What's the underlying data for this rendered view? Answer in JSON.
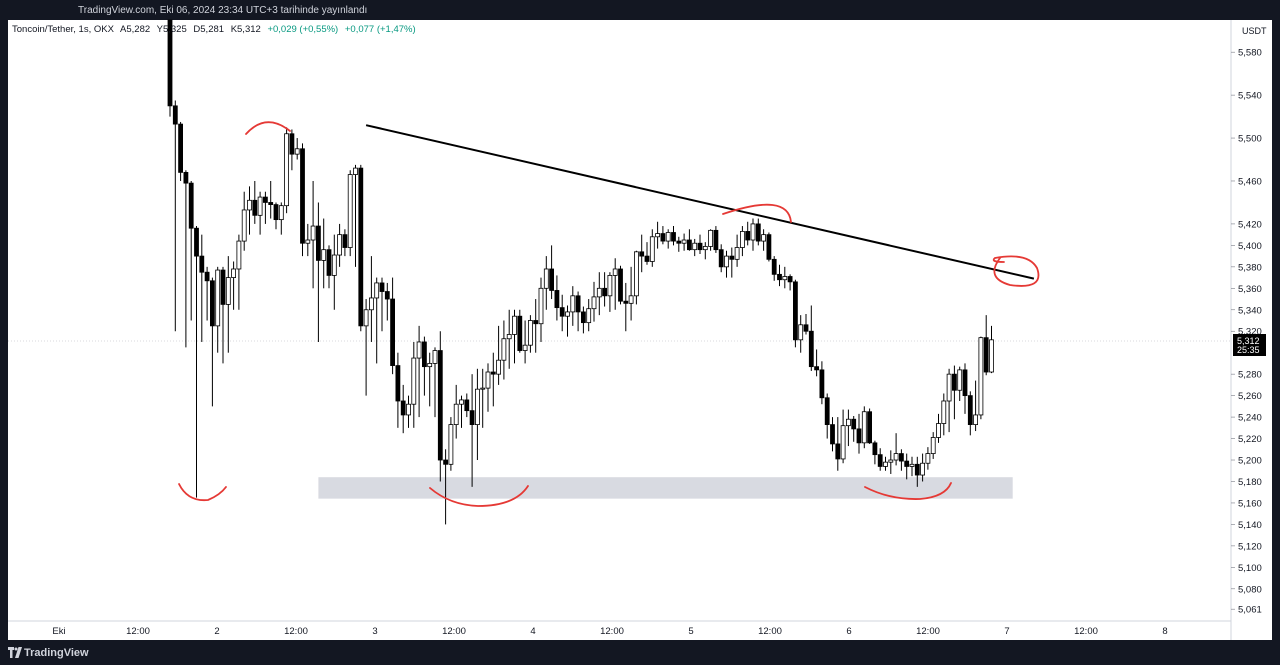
{
  "header": {
    "published": "TradingView.com, Eki 06, 2024 23:34 UTC+3 tarihinde yayınlandı"
  },
  "legend": {
    "symbol": "Toncoin/Tether, 1s, OKX",
    "open": "A5,282",
    "high": "Y5,325",
    "low": "D5,281",
    "close": "K5,312",
    "change": "+0,029 (+0,55%)",
    "change2": "+0,077 (+1,47%)"
  },
  "footer": {
    "brand": "TradingView"
  },
  "colors": {
    "up_body": "#ffffff",
    "down_body": "#000000",
    "wick": "#000000",
    "trendline": "#000000",
    "annotation": "#e53935",
    "support_zone": "#d1d4dc",
    "price_label_bg": "#000000"
  },
  "chart_data": {
    "type": "candlestick",
    "currency": "USDT",
    "ylim": [
      5.05,
      5.61
    ],
    "y_ticks": [
      "5,580",
      "5,540",
      "5,500",
      "5,460",
      "5,420",
      "5,400",
      "5,380",
      "5,360",
      "5,340",
      "5,320",
      "5,280",
      "5,260",
      "5,240",
      "5,220",
      "5,200",
      "5,180",
      "5,160",
      "5,140",
      "5,120",
      "5,100",
      "5,080",
      "5,061"
    ],
    "x_ticks": [
      "Eki",
      "12:00",
      "2",
      "12:00",
      "3",
      "12:00",
      "4",
      "12:00",
      "5",
      "12:00",
      "6",
      "12:00",
      "7",
      "12:00",
      "8"
    ],
    "last_price": "5,312",
    "countdown": "25:35",
    "annotations": {
      "trendline": {
        "from": [
          37,
          5.512
        ],
        "to": [
          163,
          5.369
        ]
      },
      "support_zone": {
        "x_from": 28,
        "x_to": 159,
        "y_from": 5.164,
        "y_to": 5.184
      }
    },
    "candles": [
      [
        5.63,
        5.63,
        5.52,
        5.53
      ],
      [
        5.53,
        5.535,
        5.32,
        5.513
      ],
      [
        5.513,
        5.515,
        5.46,
        5.468
      ],
      [
        5.468,
        5.47,
        5.305,
        5.458
      ],
      [
        5.458,
        5.46,
        5.33,
        5.416
      ],
      [
        5.416,
        5.418,
        5.165,
        5.39
      ],
      [
        5.39,
        5.41,
        5.31,
        5.375
      ],
      [
        5.375,
        5.38,
        5.33,
        5.367
      ],
      [
        5.367,
        5.37,
        5.25,
        5.325
      ],
      [
        5.325,
        5.38,
        5.3,
        5.377
      ],
      [
        5.377,
        5.38,
        5.29,
        5.345
      ],
      [
        5.345,
        5.39,
        5.3,
        5.37
      ],
      [
        5.37,
        5.385,
        5.34,
        5.378
      ],
      [
        5.378,
        5.41,
        5.34,
        5.404
      ],
      [
        5.404,
        5.45,
        5.395,
        5.433
      ],
      [
        5.433,
        5.455,
        5.41,
        5.442
      ],
      [
        5.442,
        5.46,
        5.42,
        5.428
      ],
      [
        5.428,
        5.45,
        5.41,
        5.445
      ],
      [
        5.445,
        5.45,
        5.42,
        5.44
      ],
      [
        5.44,
        5.46,
        5.425,
        5.438
      ],
      [
        5.438,
        5.44,
        5.415,
        5.424
      ],
      [
        5.424,
        5.44,
        5.41,
        5.437
      ],
      [
        5.437,
        5.51,
        5.43,
        5.504
      ],
      [
        5.504,
        5.508,
        5.47,
        5.485
      ],
      [
        5.485,
        5.5,
        5.48,
        5.49
      ],
      [
        5.49,
        5.495,
        5.39,
        5.402
      ],
      [
        5.402,
        5.42,
        5.39,
        5.405
      ],
      [
        5.405,
        5.46,
        5.36,
        5.418
      ],
      [
        5.418,
        5.44,
        5.31,
        5.386
      ],
      [
        5.386,
        5.425,
        5.36,
        5.396
      ],
      [
        5.396,
        5.4,
        5.36,
        5.372
      ],
      [
        5.372,
        5.41,
        5.34,
        5.391
      ],
      [
        5.391,
        5.42,
        5.38,
        5.41
      ],
      [
        5.41,
        5.415,
        5.39,
        5.398
      ],
      [
        5.398,
        5.47,
        5.39,
        5.466
      ],
      [
        5.466,
        5.475,
        5.38,
        5.472
      ],
      [
        5.472,
        5.475,
        5.32,
        5.325
      ],
      [
        5.325,
        5.35,
        5.26,
        5.34
      ],
      [
        5.34,
        5.39,
        5.31,
        5.351
      ],
      [
        5.351,
        5.37,
        5.29,
        5.365
      ],
      [
        5.365,
        5.37,
        5.32,
        5.357
      ],
      [
        5.357,
        5.365,
        5.33,
        5.35
      ],
      [
        5.35,
        5.37,
        5.28,
        5.288
      ],
      [
        5.288,
        5.3,
        5.23,
        5.255
      ],
      [
        5.255,
        5.27,
        5.225,
        5.242
      ],
      [
        5.242,
        5.26,
        5.23,
        5.252
      ],
      [
        5.252,
        5.31,
        5.23,
        5.295
      ],
      [
        5.295,
        5.325,
        5.24,
        5.31
      ],
      [
        5.31,
        5.315,
        5.26,
        5.287
      ],
      [
        5.287,
        5.3,
        5.25,
        5.29
      ],
      [
        5.29,
        5.305,
        5.24,
        5.302
      ],
      [
        5.302,
        5.32,
        5.18,
        5.2
      ],
      [
        5.2,
        5.21,
        5.14,
        5.196
      ],
      [
        5.196,
        5.24,
        5.19,
        5.233
      ],
      [
        5.233,
        5.27,
        5.22,
        5.252
      ],
      [
        5.252,
        5.26,
        5.23,
        5.256
      ],
      [
        5.256,
        5.262,
        5.24,
        5.246
      ],
      [
        5.246,
        5.28,
        5.175,
        5.233
      ],
      [
        5.233,
        5.285,
        5.2,
        5.266
      ],
      [
        5.266,
        5.285,
        5.23,
        5.267
      ],
      [
        5.267,
        5.29,
        5.245,
        5.282
      ],
      [
        5.282,
        5.3,
        5.25,
        5.28
      ],
      [
        5.28,
        5.325,
        5.27,
        5.293
      ],
      [
        5.293,
        5.33,
        5.275,
        5.313
      ],
      [
        5.313,
        5.34,
        5.285,
        5.317
      ],
      [
        5.317,
        5.34,
        5.29,
        5.334
      ],
      [
        5.334,
        5.34,
        5.3,
        5.302
      ],
      [
        5.302,
        5.33,
        5.29,
        5.307
      ],
      [
        5.307,
        5.335,
        5.3,
        5.33
      ],
      [
        5.33,
        5.35,
        5.3,
        5.327
      ],
      [
        5.327,
        5.37,
        5.31,
        5.36
      ],
      [
        5.36,
        5.39,
        5.34,
        5.378
      ],
      [
        5.378,
        5.4,
        5.35,
        5.358
      ],
      [
        5.358,
        5.372,
        5.33,
        5.342
      ],
      [
        5.342,
        5.354,
        5.32,
        5.334
      ],
      [
        5.334,
        5.344,
        5.315,
        5.338
      ],
      [
        5.338,
        5.362,
        5.325,
        5.353
      ],
      [
        5.353,
        5.357,
        5.32,
        5.338
      ],
      [
        5.338,
        5.343,
        5.318,
        5.328
      ],
      [
        5.328,
        5.35,
        5.32,
        5.341
      ],
      [
        5.341,
        5.366,
        5.329,
        5.352
      ],
      [
        5.352,
        5.375,
        5.335,
        5.36
      ],
      [
        5.36,
        5.375,
        5.343,
        5.353
      ],
      [
        5.353,
        5.375,
        5.338,
        5.372
      ],
      [
        5.372,
        5.388,
        5.34,
        5.378
      ],
      [
        5.378,
        5.381,
        5.345,
        5.348
      ],
      [
        5.348,
        5.365,
        5.32,
        5.346
      ],
      [
        5.346,
        5.38,
        5.33,
        5.353
      ],
      [
        5.353,
        5.395,
        5.345,
        5.394
      ],
      [
        5.394,
        5.41,
        5.375,
        5.39
      ],
      [
        5.39,
        5.403,
        5.382,
        5.385
      ],
      [
        5.385,
        5.415,
        5.38,
        5.408
      ],
      [
        5.408,
        5.422,
        5.397,
        5.411
      ],
      [
        5.411,
        5.418,
        5.401,
        5.404
      ],
      [
        5.404,
        5.415,
        5.397,
        5.412
      ],
      [
        5.412,
        5.418,
        5.4,
        5.404
      ],
      [
        5.404,
        5.408,
        5.394,
        5.402
      ],
      [
        5.402,
        5.411,
        5.395,
        5.405
      ],
      [
        5.405,
        5.415,
        5.395,
        5.396
      ],
      [
        5.396,
        5.406,
        5.39,
        5.402
      ],
      [
        5.402,
        5.41,
        5.392,
        5.396
      ],
      [
        5.396,
        5.403,
        5.387,
        5.399
      ],
      [
        5.399,
        5.415,
        5.395,
        5.414
      ],
      [
        5.414,
        5.418,
        5.393,
        5.396
      ],
      [
        5.396,
        5.401,
        5.375,
        5.38
      ],
      [
        5.38,
        5.395,
        5.37,
        5.39
      ],
      [
        5.39,
        5.398,
        5.37,
        5.387
      ],
      [
        5.387,
        5.41,
        5.38,
        5.398
      ],
      [
        5.398,
        5.418,
        5.39,
        5.413
      ],
      [
        5.413,
        5.422,
        5.4,
        5.405
      ],
      [
        5.405,
        5.425,
        5.395,
        5.42
      ],
      [
        5.42,
        5.425,
        5.4,
        5.404
      ],
      [
        5.404,
        5.415,
        5.395,
        5.41
      ],
      [
        5.41,
        5.412,
        5.385,
        5.387
      ],
      [
        5.387,
        5.39,
        5.367,
        5.373
      ],
      [
        5.373,
        5.382,
        5.362,
        5.368
      ],
      [
        5.368,
        5.38,
        5.36,
        5.371
      ],
      [
        5.371,
        5.373,
        5.358,
        5.366
      ],
      [
        5.366,
        5.368,
        5.305,
        5.312
      ],
      [
        5.312,
        5.335,
        5.3,
        5.326
      ],
      [
        5.326,
        5.336,
        5.317,
        5.32
      ],
      [
        5.32,
        5.344,
        5.283,
        5.287
      ],
      [
        5.287,
        5.303,
        5.278,
        5.284
      ],
      [
        5.284,
        5.292,
        5.252,
        5.258
      ],
      [
        5.258,
        5.262,
        5.22,
        5.233
      ],
      [
        5.233,
        5.24,
        5.208,
        5.215
      ],
      [
        5.215,
        5.24,
        5.19,
        5.201
      ],
      [
        5.201,
        5.247,
        5.197,
        5.232
      ],
      [
        5.232,
        5.247,
        5.213,
        5.238
      ],
      [
        5.238,
        5.241,
        5.217,
        5.229
      ],
      [
        5.229,
        5.243,
        5.206,
        5.216
      ],
      [
        5.216,
        5.25,
        5.211,
        5.245
      ],
      [
        5.245,
        5.248,
        5.215,
        5.216
      ],
      [
        5.216,
        5.218,
        5.196,
        5.205
      ],
      [
        5.205,
        5.211,
        5.19,
        5.194
      ],
      [
        5.194,
        5.203,
        5.19,
        5.198
      ],
      [
        5.198,
        5.209,
        5.187,
        5.2
      ],
      [
        5.2,
        5.225,
        5.195,
        5.206
      ],
      [
        5.206,
        5.21,
        5.19,
        5.199
      ],
      [
        5.199,
        5.206,
        5.182,
        5.194
      ],
      [
        5.194,
        5.203,
        5.185,
        5.196
      ],
      [
        5.196,
        5.203,
        5.175,
        5.186
      ],
      [
        5.186,
        5.206,
        5.18,
        5.197
      ],
      [
        5.197,
        5.212,
        5.191,
        5.206
      ],
      [
        5.206,
        5.226,
        5.201,
        5.221
      ],
      [
        5.221,
        5.243,
        5.216,
        5.234
      ],
      [
        5.234,
        5.262,
        5.223,
        5.255
      ],
      [
        5.255,
        5.285,
        5.226,
        5.28
      ],
      [
        5.28,
        5.288,
        5.238,
        5.265
      ],
      [
        5.265,
        5.287,
        5.255,
        5.284
      ],
      [
        5.284,
        5.29,
        5.243,
        5.26
      ],
      [
        5.26,
        5.264,
        5.223,
        5.233
      ],
      [
        5.233,
        5.274,
        5.227,
        5.242
      ],
      [
        5.242,
        5.315,
        5.238,
        5.314
      ],
      [
        5.314,
        5.335,
        5.279,
        5.282
      ],
      [
        5.282,
        5.325,
        5.281,
        5.312
      ]
    ]
  }
}
